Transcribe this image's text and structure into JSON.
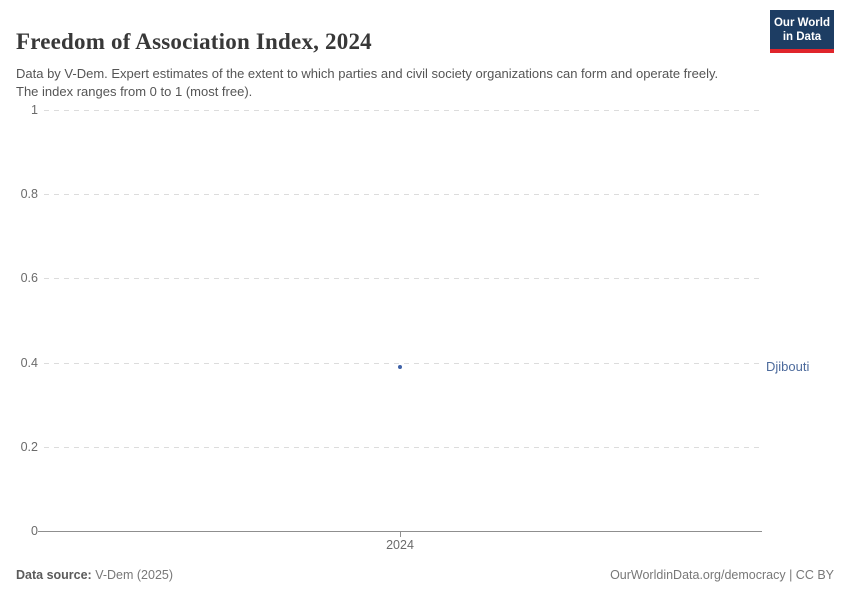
{
  "header": {
    "title": "Freedom of Association Index, 2024",
    "subtitle": "Data by V-Dem. Expert estimates of the extent to which parties and civil society organizations can form and operate freely. The index ranges from 0 to 1 (most free).",
    "logo": {
      "line1": "Our World",
      "line2": "in Data",
      "bg_color": "#1d3d63",
      "accent_color": "#e0252b"
    }
  },
  "chart_data": {
    "type": "scatter",
    "title": "Freedom of Association Index, 2024",
    "x": [
      2024
    ],
    "series": [
      {
        "name": "Djibouti",
        "values": [
          0.39
        ],
        "point_color": "#3f62a7",
        "label_color": "#4c6a9c"
      }
    ],
    "x_ticks": [
      "2024"
    ],
    "y_ticks": [
      1,
      0.8,
      0.6,
      0.4,
      0.2,
      0
    ],
    "ylim": [
      0,
      1
    ],
    "xlabel": "",
    "ylabel": "",
    "grid": "horizontal-dashed",
    "gridline_color": "#dcdcdc",
    "axis_color": "#8f8f8f",
    "tick_label_color": "#6b6b6b",
    "legend_position": "label-right-of-point"
  },
  "footer": {
    "source_label": "Data source:",
    "source_value": " V-Dem (2025)",
    "rights": "OurWorldinData.org/democracy | CC BY"
  }
}
